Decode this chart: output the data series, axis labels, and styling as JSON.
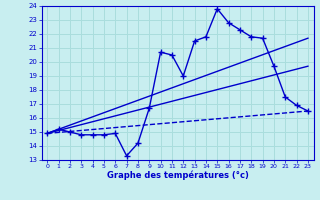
{
  "xlabel": "Graphe des températures (°c)",
  "ylim": [
    13,
    24
  ],
  "xlim": [
    -0.5,
    23.5
  ],
  "yticks": [
    13,
    14,
    15,
    16,
    17,
    18,
    19,
    20,
    21,
    22,
    23,
    24
  ],
  "xticks": [
    0,
    1,
    2,
    3,
    4,
    5,
    6,
    7,
    8,
    9,
    10,
    11,
    12,
    13,
    14,
    15,
    16,
    17,
    18,
    19,
    20,
    21,
    22,
    23
  ],
  "bg_color": "#c8eef0",
  "line_color": "#0000cc",
  "grid_color": "#aadddd",
  "measured_x": [
    0,
    1,
    2,
    3,
    4,
    5,
    6,
    7,
    8,
    9,
    10,
    11,
    12,
    13,
    14,
    15,
    16,
    17,
    18,
    19,
    20,
    21,
    22,
    23
  ],
  "measured_y": [
    14.9,
    15.2,
    15.0,
    14.8,
    14.8,
    14.8,
    14.9,
    13.3,
    14.2,
    16.7,
    20.7,
    20.5,
    19.0,
    21.5,
    21.8,
    23.8,
    22.8,
    22.3,
    21.8,
    21.7,
    19.7,
    17.5,
    16.9,
    16.5
  ],
  "line1_x": [
    0,
    23
  ],
  "line1_y": [
    14.9,
    21.7
  ],
  "line2_x": [
    0,
    23
  ],
  "line2_y": [
    14.9,
    19.7
  ],
  "line3_x": [
    0,
    23
  ],
  "line3_y": [
    14.9,
    16.5
  ]
}
